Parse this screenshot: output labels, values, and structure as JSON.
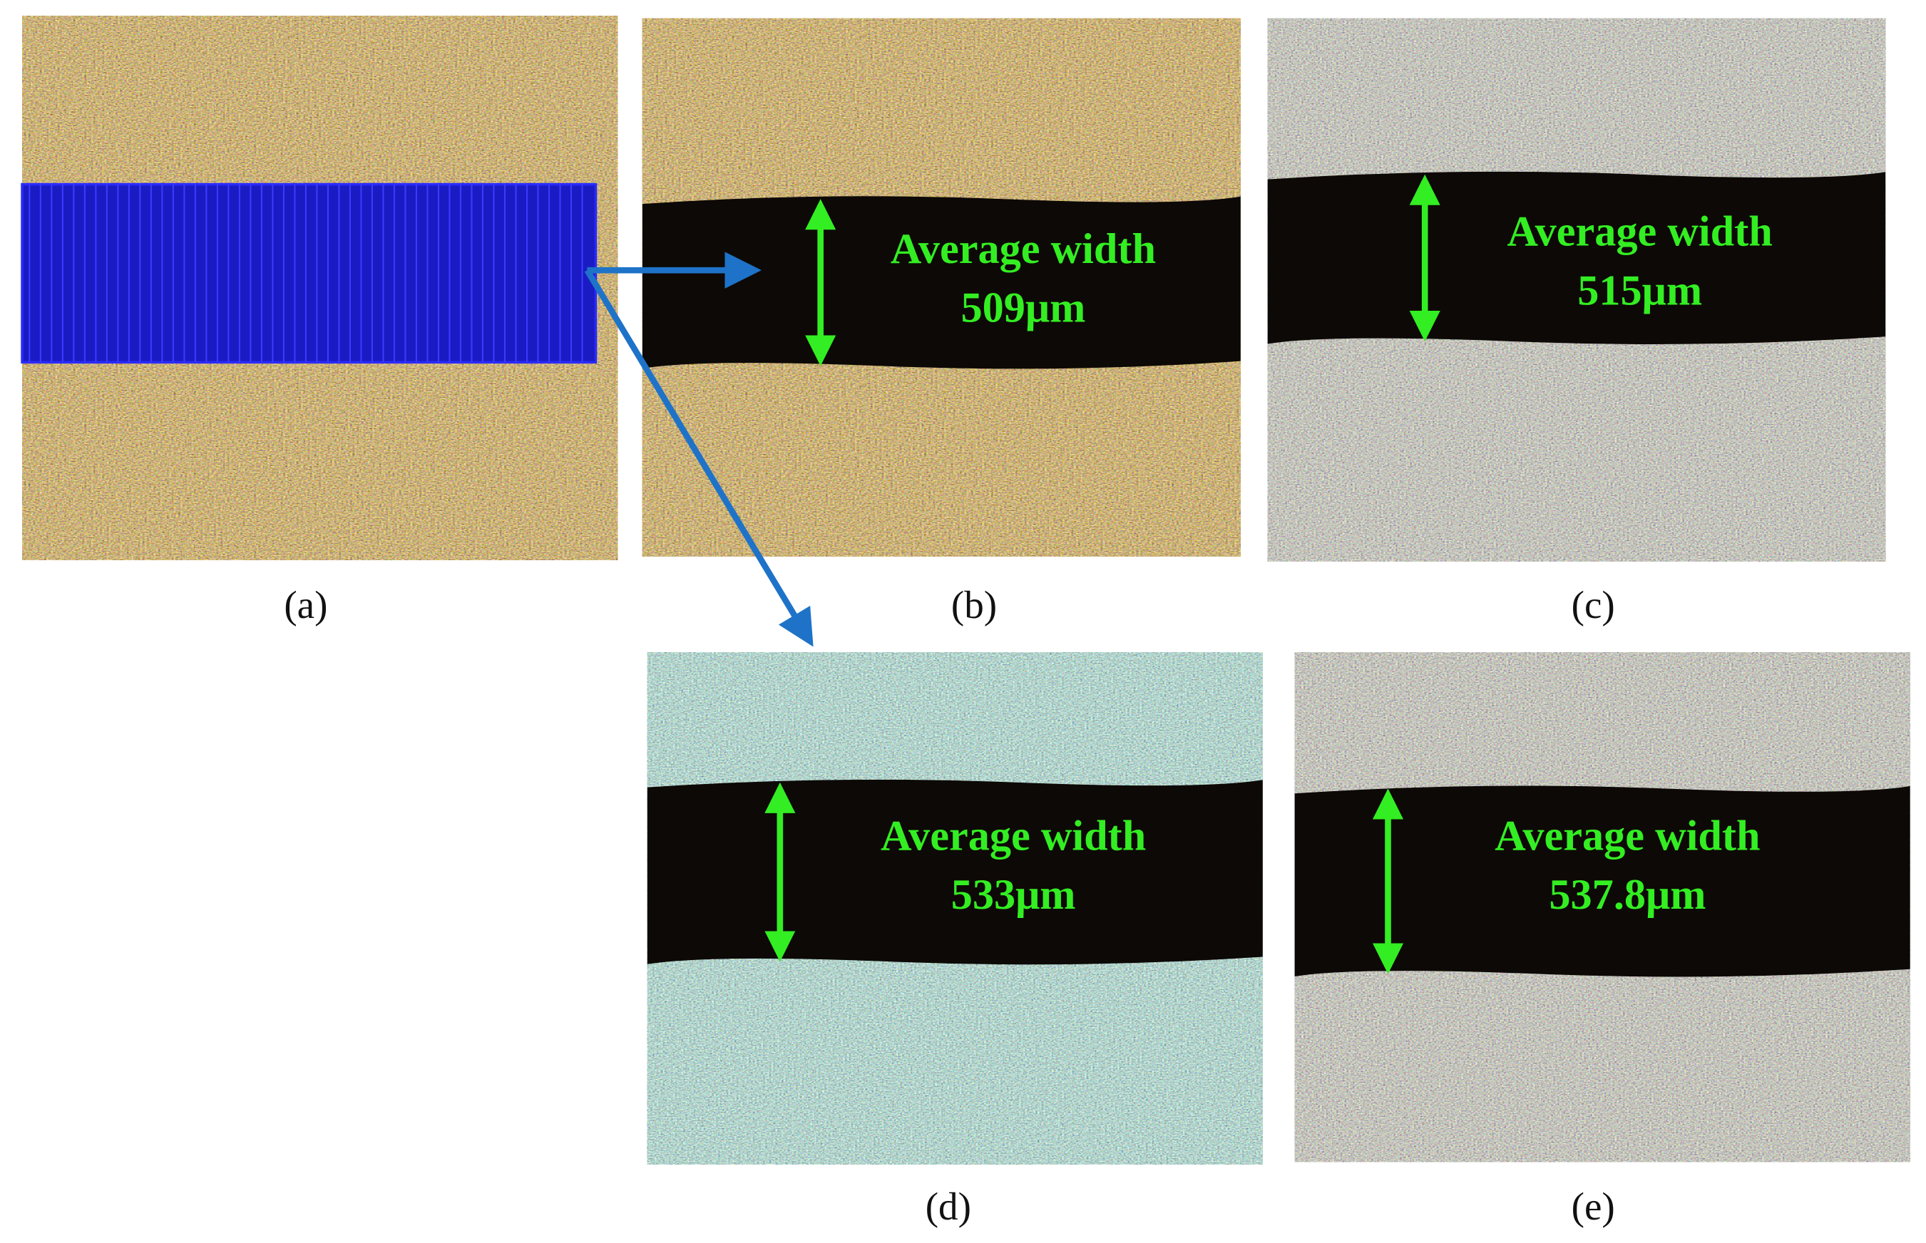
{
  "panels": [
    {
      "label": "(a)"
    },
    {
      "label": "(b)",
      "caption": "Average width",
      "width": "509μm"
    },
    {
      "label": "(c)",
      "caption": "Average width",
      "width": "515μm"
    },
    {
      "label": "(d)",
      "caption": "Average width",
      "width": "533μm"
    },
    {
      "label": "(e)",
      "caption": "Average width",
      "width": "537.8μm"
    }
  ]
}
